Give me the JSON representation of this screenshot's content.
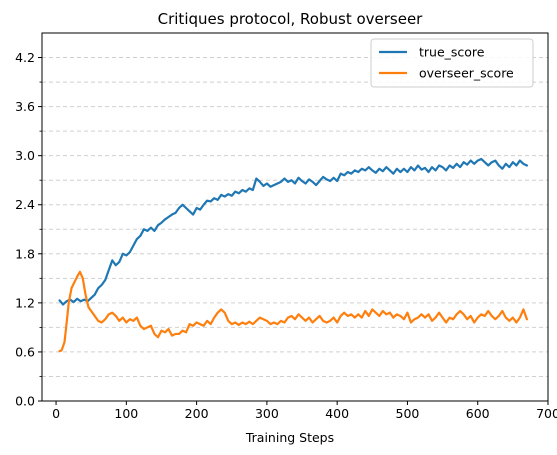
{
  "chart_data": {
    "type": "line",
    "title": "Critiques protocol, Robust overseer",
    "xlabel": "Training Steps",
    "ylabel": "",
    "xlim": [
      -20,
      700
    ],
    "ylim": [
      0,
      4.5
    ],
    "x_ticks": [
      0,
      100,
      200,
      300,
      400,
      500,
      600,
      700
    ],
    "y_ticks": [
      0.0,
      0.6,
      1.2,
      1.8,
      2.4,
      3.0,
      3.6,
      4.2
    ],
    "y_tick_labels": [
      "0.0",
      "0.6",
      "1.2",
      "1.8",
      "2.4",
      "3.0",
      "3.6",
      "4.2"
    ],
    "grid": "horizontal dashed, major and minor",
    "legend_position": "top-right",
    "series": [
      {
        "name": "true_score",
        "color": "#1f77b4",
        "points": [
          [
            5,
            1.23
          ],
          [
            10,
            1.18
          ],
          [
            15,
            1.22
          ],
          [
            20,
            1.24
          ],
          [
            25,
            1.21
          ],
          [
            30,
            1.25
          ],
          [
            35,
            1.22
          ],
          [
            40,
            1.24
          ],
          [
            45,
            1.22
          ],
          [
            50,
            1.26
          ],
          [
            55,
            1.3
          ],
          [
            60,
            1.38
          ],
          [
            65,
            1.42
          ],
          [
            70,
            1.48
          ],
          [
            75,
            1.6
          ],
          [
            80,
            1.72
          ],
          [
            85,
            1.66
          ],
          [
            90,
            1.7
          ],
          [
            95,
            1.8
          ],
          [
            100,
            1.78
          ],
          [
            105,
            1.82
          ],
          [
            110,
            1.9
          ],
          [
            115,
            1.98
          ],
          [
            120,
            2.02
          ],
          [
            125,
            2.1
          ],
          [
            130,
            2.08
          ],
          [
            135,
            2.12
          ],
          [
            140,
            2.08
          ],
          [
            145,
            2.15
          ],
          [
            150,
            2.18
          ],
          [
            155,
            2.22
          ],
          [
            160,
            2.25
          ],
          [
            165,
            2.28
          ],
          [
            170,
            2.3
          ],
          [
            175,
            2.36
          ],
          [
            180,
            2.4
          ],
          [
            185,
            2.36
          ],
          [
            190,
            2.32
          ],
          [
            195,
            2.28
          ],
          [
            200,
            2.36
          ],
          [
            205,
            2.34
          ],
          [
            210,
            2.4
          ],
          [
            215,
            2.45
          ],
          [
            220,
            2.44
          ],
          [
            225,
            2.48
          ],
          [
            230,
            2.46
          ],
          [
            235,
            2.52
          ],
          [
            240,
            2.5
          ],
          [
            245,
            2.53
          ],
          [
            250,
            2.51
          ],
          [
            255,
            2.56
          ],
          [
            260,
            2.54
          ],
          [
            265,
            2.58
          ],
          [
            270,
            2.56
          ],
          [
            275,
            2.6
          ],
          [
            280,
            2.58
          ],
          [
            285,
            2.72
          ],
          [
            290,
            2.68
          ],
          [
            295,
            2.63
          ],
          [
            300,
            2.66
          ],
          [
            305,
            2.62
          ],
          [
            310,
            2.64
          ],
          [
            315,
            2.66
          ],
          [
            320,
            2.68
          ],
          [
            325,
            2.72
          ],
          [
            330,
            2.68
          ],
          [
            335,
            2.7
          ],
          [
            340,
            2.66
          ],
          [
            345,
            2.73
          ],
          [
            350,
            2.69
          ],
          [
            355,
            2.66
          ],
          [
            360,
            2.71
          ],
          [
            365,
            2.68
          ],
          [
            370,
            2.64
          ],
          [
            375,
            2.69
          ],
          [
            380,
            2.74
          ],
          [
            385,
            2.71
          ],
          [
            390,
            2.69
          ],
          [
            395,
            2.73
          ],
          [
            400,
            2.69
          ],
          [
            405,
            2.78
          ],
          [
            410,
            2.76
          ],
          [
            415,
            2.8
          ],
          [
            420,
            2.78
          ],
          [
            425,
            2.82
          ],
          [
            430,
            2.8
          ],
          [
            435,
            2.84
          ],
          [
            440,
            2.82
          ],
          [
            445,
            2.86
          ],
          [
            450,
            2.82
          ],
          [
            455,
            2.79
          ],
          [
            460,
            2.84
          ],
          [
            465,
            2.81
          ],
          [
            470,
            2.86
          ],
          [
            475,
            2.82
          ],
          [
            480,
            2.78
          ],
          [
            485,
            2.84
          ],
          [
            490,
            2.8
          ],
          [
            495,
            2.84
          ],
          [
            500,
            2.8
          ],
          [
            505,
            2.86
          ],
          [
            510,
            2.82
          ],
          [
            515,
            2.88
          ],
          [
            520,
            2.83
          ],
          [
            525,
            2.85
          ],
          [
            530,
            2.8
          ],
          [
            535,
            2.86
          ],
          [
            540,
            2.82
          ],
          [
            545,
            2.88
          ],
          [
            550,
            2.86
          ],
          [
            555,
            2.82
          ],
          [
            560,
            2.88
          ],
          [
            565,
            2.85
          ],
          [
            570,
            2.9
          ],
          [
            575,
            2.86
          ],
          [
            580,
            2.92
          ],
          [
            585,
            2.89
          ],
          [
            590,
            2.94
          ],
          [
            595,
            2.9
          ],
          [
            600,
            2.94
          ],
          [
            605,
            2.96
          ],
          [
            610,
            2.92
          ],
          [
            615,
            2.88
          ],
          [
            620,
            2.92
          ],
          [
            625,
            2.94
          ],
          [
            630,
            2.88
          ],
          [
            635,
            2.84
          ],
          [
            640,
            2.9
          ],
          [
            645,
            2.86
          ],
          [
            650,
            2.92
          ],
          [
            655,
            2.88
          ],
          [
            660,
            2.94
          ],
          [
            665,
            2.9
          ],
          [
            670,
            2.88
          ]
        ]
      },
      {
        "name": "overseer_score",
        "color": "#ff7f0e",
        "points": [
          [
            5,
            0.61
          ],
          [
            8,
            0.62
          ],
          [
            12,
            0.72
          ],
          [
            15,
            0.95
          ],
          [
            18,
            1.2
          ],
          [
            22,
            1.38
          ],
          [
            26,
            1.45
          ],
          [
            30,
            1.52
          ],
          [
            34,
            1.58
          ],
          [
            38,
            1.5
          ],
          [
            42,
            1.3
          ],
          [
            46,
            1.15
          ],
          [
            50,
            1.1
          ],
          [
            55,
            1.04
          ],
          [
            60,
            0.98
          ],
          [
            65,
            0.96
          ],
          [
            70,
            1.0
          ],
          [
            75,
            1.06
          ],
          [
            80,
            1.08
          ],
          [
            85,
            1.04
          ],
          [
            90,
            0.98
          ],
          [
            95,
            1.02
          ],
          [
            100,
            0.96
          ],
          [
            105,
            1.0
          ],
          [
            110,
            0.98
          ],
          [
            115,
            1.02
          ],
          [
            120,
            0.92
          ],
          [
            125,
            0.88
          ],
          [
            130,
            0.9
          ],
          [
            135,
            0.92
          ],
          [
            140,
            0.82
          ],
          [
            145,
            0.78
          ],
          [
            150,
            0.86
          ],
          [
            155,
            0.84
          ],
          [
            160,
            0.88
          ],
          [
            165,
            0.8
          ],
          [
            170,
            0.82
          ],
          [
            175,
            0.82
          ],
          [
            180,
            0.86
          ],
          [
            185,
            0.84
          ],
          [
            190,
            0.94
          ],
          [
            195,
            0.92
          ],
          [
            200,
            0.96
          ],
          [
            205,
            0.94
          ],
          [
            210,
            0.92
          ],
          [
            215,
            0.98
          ],
          [
            220,
            0.94
          ],
          [
            225,
            1.02
          ],
          [
            230,
            1.08
          ],
          [
            235,
            1.12
          ],
          [
            240,
            1.08
          ],
          [
            245,
            0.98
          ],
          [
            250,
            0.94
          ],
          [
            255,
            0.96
          ],
          [
            260,
            0.93
          ],
          [
            265,
            0.96
          ],
          [
            270,
            0.94
          ],
          [
            275,
            0.97
          ],
          [
            280,
            0.94
          ],
          [
            285,
            0.98
          ],
          [
            290,
            1.02
          ],
          [
            295,
            1.0
          ],
          [
            300,
            0.98
          ],
          [
            305,
            0.94
          ],
          [
            310,
            0.96
          ],
          [
            315,
            0.94
          ],
          [
            320,
            0.98
          ],
          [
            325,
            0.96
          ],
          [
            330,
            1.02
          ],
          [
            335,
            1.04
          ],
          [
            340,
            1.0
          ],
          [
            345,
            1.06
          ],
          [
            350,
            1.02
          ],
          [
            355,
            0.98
          ],
          [
            360,
            1.02
          ],
          [
            365,
            0.96
          ],
          [
            370,
            1.0
          ],
          [
            375,
            1.04
          ],
          [
            380,
            0.98
          ],
          [
            385,
            0.96
          ],
          [
            390,
            0.98
          ],
          [
            395,
            1.02
          ],
          [
            400,
            0.96
          ],
          [
            405,
            1.04
          ],
          [
            410,
            1.08
          ],
          [
            415,
            1.04
          ],
          [
            420,
            1.06
          ],
          [
            425,
            1.02
          ],
          [
            430,
            1.06
          ],
          [
            435,
            1.02
          ],
          [
            440,
            1.1
          ],
          [
            445,
            1.04
          ],
          [
            450,
            1.12
          ],
          [
            455,
            1.08
          ],
          [
            460,
            1.04
          ],
          [
            465,
            1.1
          ],
          [
            470,
            1.06
          ],
          [
            475,
            1.08
          ],
          [
            480,
            1.02
          ],
          [
            485,
            1.06
          ],
          [
            490,
            1.04
          ],
          [
            495,
            1.0
          ],
          [
            500,
            1.08
          ],
          [
            505,
            0.96
          ],
          [
            510,
            1.0
          ],
          [
            515,
            1.02
          ],
          [
            520,
            1.06
          ],
          [
            525,
            1.02
          ],
          [
            530,
            1.06
          ],
          [
            535,
            0.98
          ],
          [
            540,
            1.02
          ],
          [
            545,
            1.08
          ],
          [
            550,
            1.02
          ],
          [
            555,
            0.96
          ],
          [
            560,
            1.02
          ],
          [
            565,
            1.0
          ],
          [
            570,
            1.06
          ],
          [
            575,
            1.1
          ],
          [
            580,
            1.06
          ],
          [
            585,
            1.0
          ],
          [
            590,
            1.04
          ],
          [
            595,
            0.96
          ],
          [
            600,
            1.02
          ],
          [
            605,
            1.06
          ],
          [
            610,
            1.04
          ],
          [
            615,
            1.1
          ],
          [
            620,
            1.04
          ],
          [
            625,
            1.0
          ],
          [
            630,
            1.04
          ],
          [
            635,
            1.1
          ],
          [
            640,
            1.02
          ],
          [
            645,
            0.98
          ],
          [
            650,
            1.02
          ],
          [
            655,
            0.96
          ],
          [
            660,
            1.02
          ],
          [
            665,
            1.12
          ],
          [
            670,
            1.0
          ]
        ]
      }
    ]
  }
}
